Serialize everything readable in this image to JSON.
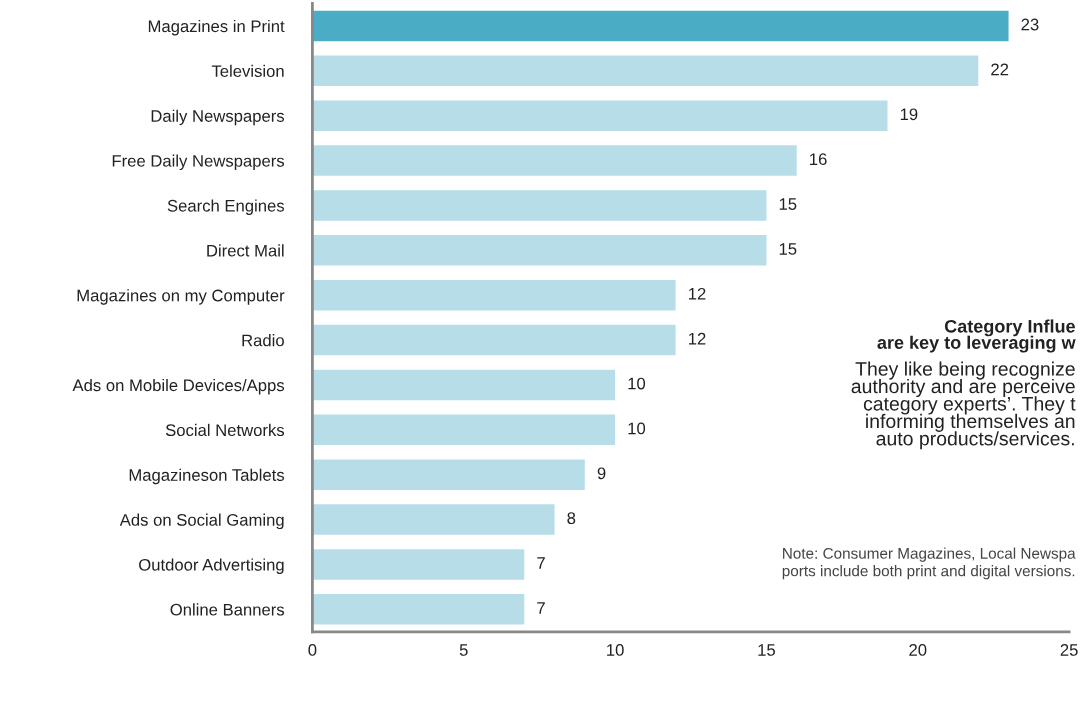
{
  "chart_data": {
    "type": "bar",
    "orientation": "horizontal",
    "categories": [
      "Magazines in Print",
      "Television",
      "Daily Newspapers",
      "Free Daily Newspapers",
      "Search Engines",
      "Direct Mail",
      "Magazines on my Computer",
      "Radio",
      "Ads on Mobile Devices/Apps",
      "Social Networks",
      "Magazineson Tablets",
      "Ads on Social Gaming",
      "Outdoor Advertising",
      "Online Banners"
    ],
    "values": [
      23,
      22,
      19,
      16,
      15,
      15,
      12,
      12,
      10,
      10,
      9,
      8,
      7,
      7
    ],
    "colors": [
      "#4bacc6",
      "#b7dee8",
      "#b7dee8",
      "#b7dee8",
      "#b7dee8",
      "#b7dee8",
      "#b7dee8",
      "#b7dee8",
      "#b7dee8",
      "#b7dee8",
      "#b7dee8",
      "#b7dee8",
      "#b7dee8",
      "#b7dee8"
    ],
    "xlim": [
      0,
      25
    ],
    "xticks": [
      0,
      5,
      10,
      15,
      20,
      25
    ],
    "data_labels": true,
    "grid": false,
    "legend": false,
    "annotations": [
      "Category Influe\nare key to leveraging w",
      "They like being recognize\nauthority and are perceive\ncategory experts’. They t\ninforming themselves an\nauto products/services.",
      "Note: Consumer Magazines, Local Newspa\nports include both print and digital versions."
    ]
  }
}
